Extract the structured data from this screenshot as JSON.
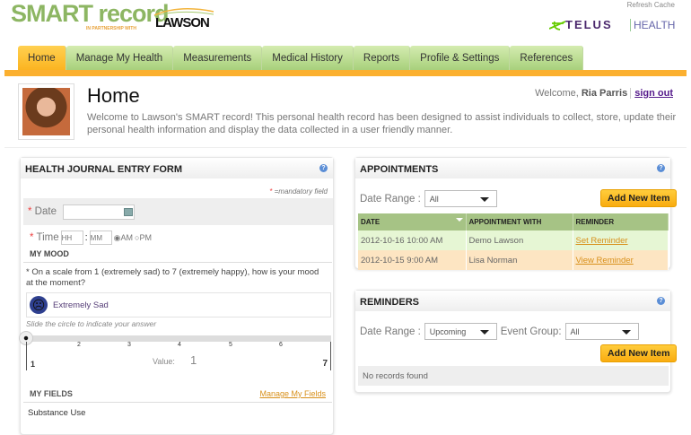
{
  "brand": {
    "smart": "SMART record",
    "partner": "IN PARTNERSHIP WITH",
    "lawson": "LAWSON",
    "telus": "TELUS",
    "health": "HEALTH",
    "refresh": "Refresh Cache"
  },
  "nav": {
    "tabs": [
      "Home",
      "Manage My Health",
      "Measurements",
      "Medical History",
      "Reports",
      "Profile & Settings",
      "References"
    ],
    "active": "Home"
  },
  "header": {
    "title": "Home",
    "description": "Welcome to Lawson's SMART record! This personal health record has been designed to assist individuals to collect, store, update their personal health information and display the data collected in a user friendly manner.",
    "welcome": "Welcome,",
    "user": "Ria Parris",
    "signout": "sign out"
  },
  "journal": {
    "title": "HEALTH JOURNAL ENTRY FORM",
    "mandatory_mark": "*",
    "mandatory": "=mandatory field",
    "date_label": "Date",
    "time_label": "Time",
    "hh_placeholder": "HH",
    "mm_placeholder": "MM",
    "colon": ":",
    "am": "AM",
    "pm": "PM",
    "time_period": "AM",
    "mood_heading": "MY MOOD",
    "question": "* On a scale from 1 (extremely sad) to 7 (extremely happy), how is your mood at the moment?",
    "mood_label": "Extremely Sad",
    "slide_hint": "Slide the circle to indicate your answer",
    "scale_min": "1",
    "scale_max": "7",
    "ticks": [
      "2",
      "3",
      "4",
      "5",
      "6"
    ],
    "value_label": "Value:",
    "value": "1",
    "myfields": "MY FIELDS",
    "manage_fields": "Manage My Fields",
    "substance": "Substance Use"
  },
  "appointments": {
    "title": "APPOINTMENTS",
    "date_range_label": "Date Range :",
    "date_range": "All",
    "add": "Add New Item",
    "columns": [
      "DATE",
      "APPOINTMENT WITH",
      "REMINDER"
    ],
    "rows": [
      {
        "date": "2012-10-16 10:00 AM",
        "with": "Demo Lawson",
        "reminder": "Set Reminder"
      },
      {
        "date": "2012-10-15 9:00 AM",
        "with": "Lisa Norman",
        "reminder": "View Reminder"
      }
    ],
    "row_colors": [
      "#e6f6d4",
      "#fde5c2"
    ]
  },
  "reminders": {
    "title": "REMINDERS",
    "date_range_label": "Date Range :",
    "date_range": "Upcoming",
    "event_group_label": "Event Group:",
    "event_group": "All",
    "add": "Add New Item",
    "empty": "No records found"
  },
  "icons": {
    "help": "help-icon",
    "calendar": "calendar-icon",
    "mood": "sad-face-icon",
    "sort": "sort-down-icon"
  }
}
